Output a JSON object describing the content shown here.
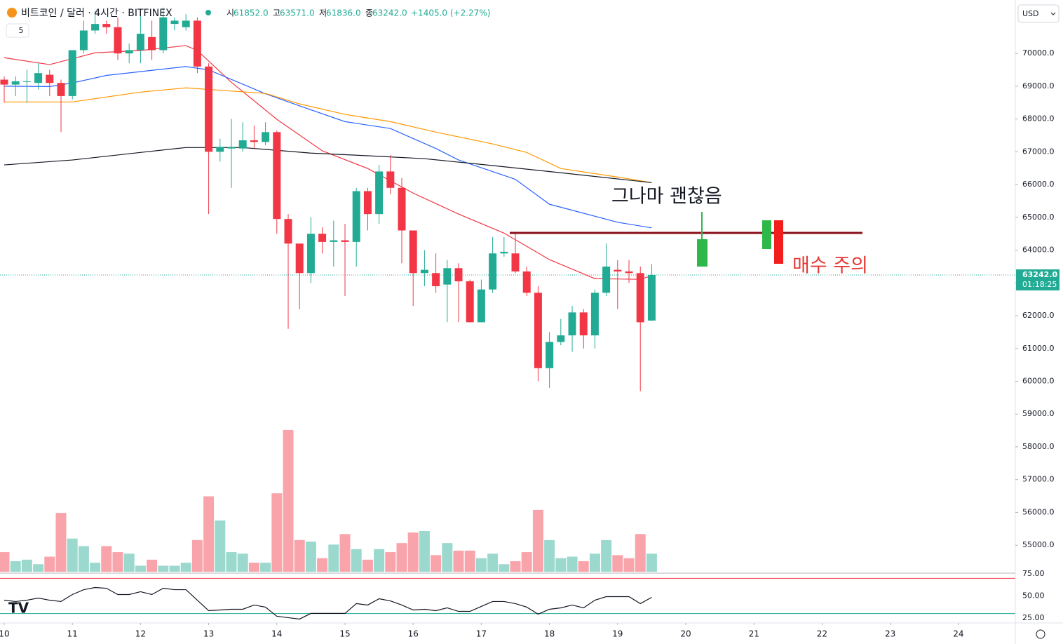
{
  "header": {
    "title": "비트코인 / 달러 · 4시간 · BITFINEX",
    "ohlc": [
      {
        "label": "시",
        "value": "61852.0"
      },
      {
        "label": "고",
        "value": "63571.0"
      },
      {
        "label": "저",
        "value": "61836.0"
      },
      {
        "label": "종",
        "value": "63242.0"
      }
    ],
    "change": "+1405.0 (+2.27%)",
    "interval_button": "5",
    "currency": "USD"
  },
  "chart_data": {
    "type": "candlestick",
    "up_color": "#22ab94",
    "down_color": "#f23645",
    "xlim": [
      -0.37,
      89.01
    ],
    "xticks": [
      {
        "value": 0,
        "label": "10"
      },
      {
        "value": 6,
        "label": "11"
      },
      {
        "value": 12,
        "label": "12"
      },
      {
        "value": 18,
        "label": "13"
      },
      {
        "value": 24,
        "label": "14"
      },
      {
        "value": 30,
        "label": "15"
      },
      {
        "value": 36,
        "label": "16"
      },
      {
        "value": 42,
        "label": "17"
      },
      {
        "value": 48,
        "label": "18"
      },
      {
        "value": 54,
        "label": "19"
      },
      {
        "value": 60,
        "label": "20"
      },
      {
        "value": 66,
        "label": "21"
      },
      {
        "value": 72,
        "label": "22"
      },
      {
        "value": 78,
        "label": "23"
      },
      {
        "value": 84,
        "label": "24"
      }
    ],
    "ylim": [
      54190,
      71630
    ],
    "yticks": [
      {
        "value": 55000,
        "label": "55000.0"
      },
      {
        "value": 56000,
        "label": "56000.0"
      },
      {
        "value": 57000,
        "label": "57000.0"
      },
      {
        "value": 58000,
        "label": "58000.0"
      },
      {
        "value": 59000,
        "label": "59000.0"
      },
      {
        "value": 60000,
        "label": "60000.0"
      },
      {
        "value": 61000,
        "label": "61000.0"
      },
      {
        "value": 62000,
        "label": "62000.0"
      },
      {
        "value": 63000,
        "label": "63000.0"
      },
      {
        "value": 64000,
        "label": "64000.0"
      },
      {
        "value": 65000,
        "label": "65000.0"
      },
      {
        "value": 66000,
        "label": "66000.0"
      },
      {
        "value": 67000,
        "label": "67000.0"
      },
      {
        "value": 68000,
        "label": "68000.0"
      },
      {
        "value": 69000,
        "label": "69000.0"
      },
      {
        "value": 70000,
        "label": "70000.0"
      }
    ],
    "candles": {
      "open": [
        69200,
        69050,
        69150,
        69100,
        69350,
        69100,
        68700,
        70100,
        70700,
        70900,
        70800,
        70000,
        70100,
        70500,
        70100,
        70900,
        70800,
        71000,
        69600,
        67000,
        67100,
        67100,
        67350,
        67300,
        67600,
        64950,
        64200,
        63300,
        64500,
        64250,
        64300,
        64250,
        65800,
        65100,
        66400,
        65900,
        64600,
        63300,
        63300,
        62950,
        63450,
        63050,
        61800,
        62800,
        63900,
        63900,
        63350,
        62700,
        60400,
        61200,
        61400,
        62100,
        61400,
        62700,
        63400,
        63350,
        63300,
        61852
      ],
      "high": [
        69300,
        69300,
        69500,
        69700,
        69500,
        69200,
        70100,
        71000,
        71300,
        71000,
        71100,
        70300,
        71200,
        71000,
        71400,
        71100,
        71200,
        71100,
        69700,
        67400,
        68000,
        67900,
        67800,
        67900,
        67650,
        65100,
        64100,
        65000,
        64700,
        64900,
        64800,
        65900,
        65900,
        66600,
        66900,
        66200,
        64600,
        64000,
        63900,
        63700,
        63600,
        63100,
        63100,
        64400,
        64400,
        64500,
        63500,
        62900,
        61500,
        61900,
        62300,
        62200,
        62800,
        64200,
        63700,
        63700,
        63500,
        63571
      ],
      "low": [
        68500,
        68700,
        68500,
        68900,
        68700,
        67600,
        68600,
        70000,
        70600,
        70600,
        69800,
        69700,
        69700,
        69800,
        70000,
        70700,
        70700,
        69400,
        65100,
        66700,
        65900,
        67000,
        67100,
        67200,
        64500,
        61600,
        62200,
        63000,
        63900,
        63500,
        62600,
        63500,
        64600,
        64800,
        65700,
        63600,
        62300,
        62900,
        62700,
        61800,
        61800,
        61800,
        61800,
        62700,
        63800,
        63300,
        62600,
        60000,
        59800,
        61100,
        60900,
        61000,
        61000,
        62600,
        62200,
        63000,
        59700,
        61836
      ],
      "close": [
        69050,
        69150,
        69150,
        69400,
        69100,
        68700,
        70100,
        70700,
        70900,
        70800,
        70000,
        70100,
        70600,
        70100,
        71100,
        71000,
        71000,
        69600,
        67000,
        67150,
        67150,
        67350,
        67300,
        67600,
        64950,
        64200,
        63300,
        64500,
        64250,
        64300,
        64250,
        65800,
        65100,
        66400,
        65900,
        64600,
        63300,
        63400,
        62900,
        63450,
        63050,
        61800,
        62800,
        63900,
        63950,
        63350,
        62700,
        60400,
        61200,
        61400,
        62100,
        61400,
        62700,
        63500,
        63350,
        63300,
        61800,
        63242
      ]
    },
    "moving_averages": [
      {
        "color": "#f23645",
        "x": [
          0,
          4,
          8,
          12,
          16,
          17,
          20,
          24,
          28,
          32,
          36,
          40,
          44,
          48,
          52,
          56,
          57
        ],
        "values": [
          69870,
          69660,
          70020,
          70090,
          70240,
          70090,
          69120,
          67990,
          67030,
          66490,
          65740,
          65100,
          64520,
          63710,
          63130,
          63110,
          63220
        ]
      },
      {
        "color": "#2962ff",
        "x": [
          0,
          4,
          6,
          9,
          16,
          18,
          23,
          26,
          30,
          34,
          38,
          40,
          45,
          48,
          54,
          57
        ],
        "values": [
          69000,
          68990,
          69100,
          69330,
          69600,
          69500,
          68770,
          68400,
          67920,
          67710,
          67100,
          66750,
          66160,
          65400,
          64850,
          64680
        ]
      },
      {
        "color": "#ff9800",
        "x": [
          0,
          6,
          12,
          16,
          23,
          26,
          30,
          34,
          38,
          43,
          46,
          49,
          54,
          57
        ],
        "values": [
          68520,
          68520,
          68820,
          68950,
          68780,
          68460,
          68140,
          67920,
          67600,
          67240,
          66980,
          66490,
          66230,
          66060
        ]
      },
      {
        "color": "#131722",
        "x": [
          0,
          6,
          12,
          16,
          21,
          27,
          32,
          37,
          43,
          49,
          57
        ],
        "values": [
          66600,
          66750,
          66980,
          67130,
          67130,
          66960,
          66880,
          66790,
          66580,
          66360,
          66060
        ]
      }
    ],
    "volume": {
      "ylim": [
        0,
        100
      ],
      "values": [
        13,
        7,
        8,
        5,
        10,
        39,
        22,
        17,
        6,
        17,
        13,
        12,
        4,
        8,
        4,
        4,
        6,
        21,
        50,
        34,
        13,
        12,
        6,
        6,
        52,
        94,
        21,
        20,
        9,
        18,
        25,
        15,
        8,
        15,
        13,
        19,
        26,
        27,
        11,
        19,
        14,
        14,
        9,
        12,
        5,
        7,
        13,
        41,
        21,
        9,
        10,
        7,
        12,
        21,
        11,
        9,
        25,
        12
      ]
    },
    "rsi": {
      "ylim": [
        19.4,
        77.4
      ],
      "yticks": [
        {
          "value": 25,
          "label": "25.00"
        },
        {
          "value": 50,
          "label": "50.00"
        },
        {
          "value": 75,
          "label": "75.00"
        }
      ],
      "upper": 70,
      "lower": 30,
      "values": [
        45.2,
        43.7,
        45.2,
        47.6,
        45.2,
        43.7,
        51.6,
        57.1,
        59.5,
        58.7,
        51.6,
        51.6,
        54.8,
        51.6,
        58.7,
        57.1,
        57.1,
        45.2,
        33.3,
        34.1,
        34.9,
        34.9,
        39.7,
        37.3,
        27,
        25.4,
        23.8,
        30.2,
        30.2,
        30.2,
        30.2,
        41.3,
        39.7,
        46.8,
        44.4,
        39.7,
        34.1,
        34.9,
        33.3,
        36.5,
        32.5,
        32.5,
        38.1,
        43.7,
        43.7,
        41.3,
        37.3,
        29.4,
        34.9,
        36.5,
        39.7,
        36.5,
        45.2,
        49.2,
        49.2,
        49.2,
        41.3,
        48.4
      ]
    },
    "last_price": {
      "value": 63242,
      "label": "63242.0",
      "countdown": "01:18:25"
    },
    "annotations": [
      {
        "text": "그나마 괜찮음"
      },
      {
        "text": "매수 주의"
      }
    ]
  }
}
